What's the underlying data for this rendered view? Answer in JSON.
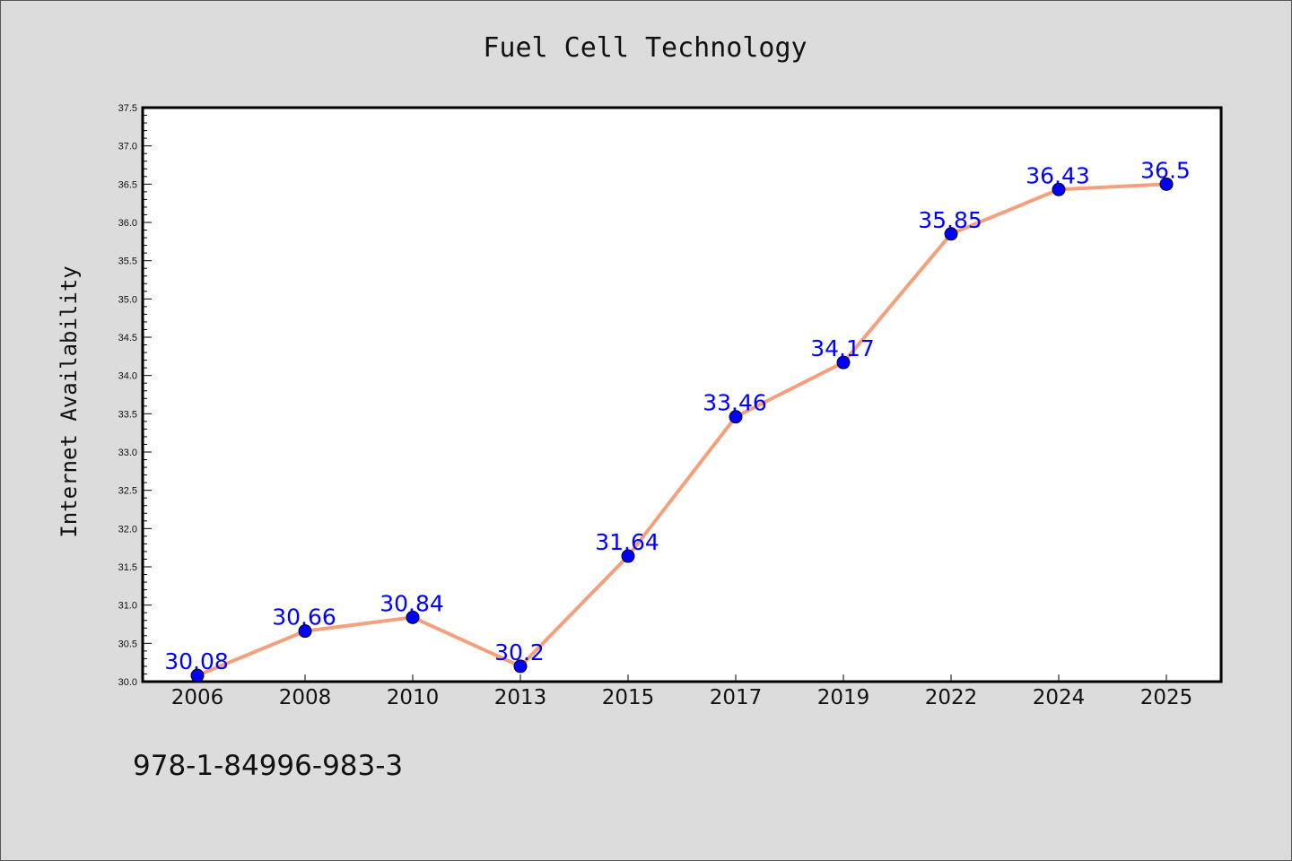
{
  "chart_data": {
    "type": "line",
    "title": "Fuel Cell Technology",
    "xlabel": "",
    "ylabel": "Internet Availability",
    "categories": [
      "2006",
      "2008",
      "2010",
      "2013",
      "2015",
      "2017",
      "2019",
      "2022",
      "2024",
      "2025"
    ],
    "series": [
      {
        "values": [
          30.08,
          30.66,
          30.84,
          30.2,
          31.64,
          33.46,
          34.17,
          35.85,
          36.43,
          36.5
        ]
      }
    ],
    "data_labels": [
      "30.08",
      "30.66",
      "30.84",
      "30.2",
      "31.64",
      "33.46",
      "34.17",
      "35.85",
      "36.43",
      "36.5"
    ],
    "ylim": [
      30.0,
      37.5
    ],
    "yticks": [
      "30.0",
      "30.5",
      "31.0",
      "31.5",
      "32.0",
      "32.5",
      "33.0",
      "33.5",
      "34.0",
      "34.5",
      "35.0",
      "35.5",
      "36.0",
      "36.5",
      "37.0",
      "37.5"
    ],
    "grid": false,
    "line_color": "#f4a07c",
    "marker_color": "#0000ff",
    "background": "#dcdcdc",
    "plot_background": "#ffffff"
  },
  "footer": {
    "isbn": "978-1-84996-983-3"
  }
}
